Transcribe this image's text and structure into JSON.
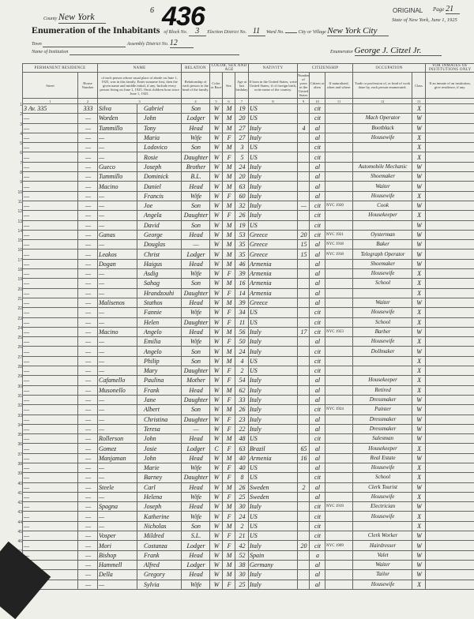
{
  "header": {
    "stamp_number": "436",
    "stamp_mark": "6",
    "original_label": "ORIGINAL",
    "page_label": "Page",
    "page_number": "21",
    "state_line": "State of New York, June 1, 1925",
    "county_label": "County",
    "county_value": "New York",
    "title": "Enumeration of the Inhabitants",
    "block_label": "of Block No.",
    "block_value": "3",
    "election_label": "Election District No.",
    "election_value": "11",
    "ward_label": "Ward No.",
    "ward_value": "",
    "city_label": "City or Village",
    "city_value": "New York City",
    "town_label": "Town",
    "assembly_label": "Assembly District No.",
    "assembly_value": "12",
    "institution_label": "Name of Institution",
    "enumerator_label": "Enumerator",
    "enumerator_value": "George J. Citzel Jr."
  },
  "columns": {
    "permanent_residence": "PERMANENT RESIDENCE",
    "street": "Street",
    "house_number": "House Number",
    "name": "NAME",
    "name_desc": "of each person whose usual place of abode on June 1, 1925, was in this family. Enter surname first, then the given name and middle initial, if any. Include every person living on June 1, 1925. Omit children born since June 1, 1925.",
    "relation": "RELATION",
    "relation_desc": "Relationship of each person to the head of the family.",
    "color_sex_age": "COLOR, SEX AND AGE",
    "color": "Color or Race",
    "sex": "Sex",
    "age": "Age at last birthday",
    "nativity": "NATIVITY",
    "nativity_desc": "If born in the United States, write United States; if of foreign birth, write name of the country.",
    "citizenship": "CITIZENSHIP",
    "years_us": "Number of years in the United States",
    "citizen_alien": "Citizen or alien",
    "naturalized": "If naturalized, when and where.",
    "occupation": "OCCUPATION",
    "occupation_desc": "Trade or profession of, or kind of work done by, each person enumerated.",
    "class": "Class",
    "inmates": "FOR INMATES OF INSTITUTIONS ONLY",
    "inmates_desc": "If an inmate of an institution, give residence, if any.",
    "numbers": [
      "1",
      "2",
      "3",
      "4",
      "5",
      "6",
      "7",
      "8",
      "9",
      "10",
      "11",
      "12",
      "13"
    ]
  },
  "rows": [
    [
      "3 Av. 335",
      "333",
      "Silva",
      "Gabriel",
      "Son",
      "W",
      "M",
      "19",
      "US",
      "",
      "cit",
      "",
      "",
      "X"
    ],
    [
      "—",
      "—",
      "Worden",
      "John",
      "Lodger",
      "W",
      "M",
      "20",
      "US",
      "",
      "cit",
      "",
      "Mach Operator",
      "W"
    ],
    [
      "—",
      "—",
      "Tummillo",
      "Tony",
      "Head",
      "W",
      "M",
      "27",
      "Italy",
      "4",
      "al",
      "",
      "Bootblack",
      "W"
    ],
    [
      "—",
      "—",
      "—",
      "Maria",
      "Wife",
      "W",
      "F",
      "27",
      "Italy",
      "",
      "al",
      "",
      "Housewife",
      "X"
    ],
    [
      "—",
      "—",
      "—",
      "Lodovico",
      "Son",
      "W",
      "M",
      "3",
      "US",
      "",
      "cit",
      "",
      "",
      "X"
    ],
    [
      "—",
      "—",
      "—",
      "Rosie",
      "Daughter",
      "W",
      "F",
      "5",
      "US",
      "",
      "cit",
      "",
      "",
      "X"
    ],
    [
      "—",
      "—",
      "Gueco",
      "Joseph",
      "Brother",
      "W",
      "M",
      "24",
      "Italy",
      "",
      "al",
      "",
      "Automobile Mechanic",
      "W"
    ],
    [
      "—",
      "—",
      "Tummillo",
      "Dominick",
      "B.L.",
      "W",
      "M",
      "20",
      "Italy",
      "",
      "al",
      "",
      "Shoemaker",
      "W"
    ],
    [
      "—",
      "—",
      "Macino",
      "Daniel",
      "Head",
      "W",
      "M",
      "63",
      "Italy",
      "",
      "al",
      "",
      "Waiter",
      "W"
    ],
    [
      "—",
      "—",
      "—",
      "Francis",
      "Wife",
      "W",
      "F",
      "60",
      "Italy",
      "",
      "al",
      "",
      "Housewife",
      "X"
    ],
    [
      "—",
      "—",
      "—",
      "Joe",
      "Son",
      "W",
      "M",
      "32",
      "Italy",
      "—",
      "cit",
      "NYC 1920",
      "Cook",
      "W"
    ],
    [
      "—",
      "—",
      "—",
      "Angela",
      "Daughter",
      "W",
      "F",
      "26",
      "Italy",
      "",
      "cit",
      "",
      "Housekeeper",
      "X"
    ],
    [
      "—",
      "—",
      "—",
      "David",
      "Son",
      "W",
      "M",
      "19",
      "US",
      "",
      "cit",
      "",
      "",
      "W"
    ],
    [
      "—",
      "—",
      "Ganas",
      "George",
      "Head",
      "W",
      "M",
      "53",
      "Greece",
      "20",
      "cit",
      "NYC 1921",
      "Oysterman",
      "W"
    ],
    [
      "—",
      "—",
      "—",
      "Douglas",
      "—",
      "W",
      "M",
      "35",
      "Greece",
      "15",
      "al",
      "NYC 1918",
      "Baker",
      "W"
    ],
    [
      "—",
      "—",
      "Leakos",
      "Christ",
      "Lodger",
      "W",
      "M",
      "35",
      "Greece",
      "15",
      "al",
      "NYC 1918",
      "Telegraph Operator",
      "W"
    ],
    [
      "—",
      "—",
      "Dogan",
      "Haigus",
      "Head",
      "W",
      "M",
      "46",
      "Armenia",
      "",
      "al",
      "",
      "Shoemaker",
      "W"
    ],
    [
      "—",
      "—",
      "—",
      "Asdig",
      "Wife",
      "W",
      "F",
      "39",
      "Armenia",
      "",
      "al",
      "",
      "Housewife",
      "X"
    ],
    [
      "—",
      "—",
      "—",
      "Sahag",
      "Son",
      "W",
      "M",
      "16",
      "Armenia",
      "",
      "al",
      "",
      "School",
      "X"
    ],
    [
      "—",
      "—",
      "—",
      "Hrandzouhi",
      "Daughter",
      "W",
      "F",
      "14",
      "Armenia",
      "",
      "al",
      "",
      "",
      "X"
    ],
    [
      "—",
      "—",
      "Malisenos",
      "Stathos",
      "Head",
      "W",
      "M",
      "39",
      "Greece",
      "",
      "al",
      "",
      "Waiter",
      "W"
    ],
    [
      "—",
      "—",
      "—",
      "Fannie",
      "Wife",
      "W",
      "F",
      "34",
      "US",
      "",
      "cit",
      "",
      "Housewife",
      "X"
    ],
    [
      "—",
      "—",
      "—",
      "Helen",
      "Daughter",
      "W",
      "F",
      "11",
      "US",
      "",
      "cit",
      "",
      "School",
      "X"
    ],
    [
      "—",
      "—",
      "Macino",
      "Angelo",
      "Head",
      "W",
      "M",
      "56",
      "Italy",
      "17",
      "cit",
      "NYC 1923",
      "Barber",
      "W"
    ],
    [
      "—",
      "—",
      "—",
      "Emilia",
      "Wife",
      "W",
      "F",
      "50",
      "Italy",
      "",
      "al",
      "",
      "Housewife",
      "X"
    ],
    [
      "—",
      "—",
      "—",
      "Angelo",
      "Son",
      "W",
      "M",
      "24",
      "Italy",
      "",
      "cit",
      "",
      "Dollmaker",
      "W"
    ],
    [
      "—",
      "—",
      "—",
      "Philip",
      "Son",
      "W",
      "M",
      "4",
      "US",
      "",
      "cit",
      "",
      "",
      "X"
    ],
    [
      "—",
      "—",
      "—",
      "Mary",
      "Daughter",
      "W",
      "F",
      "2",
      "US",
      "",
      "cit",
      "",
      "",
      "X"
    ],
    [
      "—",
      "—",
      "Cafamello",
      "Paulina",
      "Mother",
      "W",
      "F",
      "54",
      "Italy",
      "",
      "al",
      "",
      "Housekeeper",
      "X"
    ],
    [
      "—",
      "—",
      "Musonello",
      "Frank",
      "Head",
      "W",
      "M",
      "62",
      "Italy",
      "",
      "al",
      "",
      "Retired",
      "X"
    ],
    [
      "—",
      "—",
      "—",
      "Jane",
      "Daughter",
      "W",
      "F",
      "33",
      "Italy",
      "",
      "al",
      "",
      "Dressmaker",
      "W"
    ],
    [
      "—",
      "—",
      "—",
      "Albert",
      "Son",
      "W",
      "M",
      "26",
      "Italy",
      "",
      "cit",
      "NYC 1924",
      "Painter",
      "W"
    ],
    [
      "—",
      "—",
      "—",
      "Christina",
      "Daughter",
      "W",
      "F",
      "23",
      "Italy",
      "",
      "al",
      "",
      "Dressmaker",
      "W"
    ],
    [
      "—",
      "—",
      "—",
      "Teresa",
      "—",
      "W",
      "F",
      "22",
      "Italy",
      "",
      "al",
      "",
      "Dressmaker",
      "W"
    ],
    [
      "—",
      "—",
      "Rollerson",
      "John",
      "Head",
      "W",
      "M",
      "48",
      "US",
      "",
      "cit",
      "",
      "Salesman",
      "W"
    ],
    [
      "—",
      "—",
      "Gomez",
      "Josie",
      "Lodger",
      "C",
      "F",
      "63",
      "Brazil",
      "65",
      "al",
      "",
      "Housekeeper",
      "X"
    ],
    [
      "—",
      "—",
      "Manjaman",
      "John",
      "Head",
      "W",
      "M",
      "40",
      "Armenia",
      "16",
      "al",
      "",
      "Real Estate",
      "W"
    ],
    [
      "—",
      "—",
      "—",
      "Marie",
      "Wife",
      "W",
      "F",
      "40",
      "US",
      "",
      "al",
      "",
      "Housewife",
      "X"
    ],
    [
      "—",
      "—",
      "—",
      "Barney",
      "Daughter",
      "W",
      "F",
      "8",
      "US",
      "",
      "cit",
      "",
      "School",
      "X"
    ],
    [
      "—",
      "—",
      "Steele",
      "Carl",
      "Head",
      "W",
      "M",
      "26",
      "Sweden",
      "2",
      "al",
      "",
      "Clerk Tourist",
      "W"
    ],
    [
      "—",
      "—",
      "—",
      "Helena",
      "Wife",
      "W",
      "F",
      "25",
      "Sweden",
      "",
      "al",
      "",
      "Housewife",
      "X"
    ],
    [
      "—",
      "—",
      "Spagna",
      "Joseph",
      "Head",
      "W",
      "M",
      "30",
      "Italy",
      "",
      "cit",
      "NYC 1919",
      "Electrician",
      "W"
    ],
    [
      "—",
      "—",
      "—",
      "Katherine",
      "Wife",
      "W",
      "F",
      "24",
      "US",
      "",
      "cit",
      "",
      "Housewife",
      "X"
    ],
    [
      "—",
      "—",
      "—",
      "Nicholas",
      "Son",
      "W",
      "M",
      "2",
      "US",
      "",
      "cit",
      "",
      "",
      "X"
    ],
    [
      "—",
      "—",
      "Vosper",
      "Mildred",
      "S.L.",
      "W",
      "F",
      "21",
      "US",
      "",
      "cit",
      "",
      "Clerk Worker",
      "W"
    ],
    [
      "—",
      "—",
      "Mori",
      "Costanza",
      "Lodger",
      "W",
      "F",
      "42",
      "Italy",
      "20",
      "cit",
      "NYC 1909",
      "Hairdresser",
      "W"
    ],
    [
      "—",
      "—",
      "Bishop",
      "Frank",
      "Head",
      "W",
      "M",
      "52",
      "Spain",
      "",
      "a",
      "",
      "Valet",
      "W"
    ],
    [
      "—",
      "—",
      "Hammell",
      "Alfred",
      "Lodger",
      "W",
      "M",
      "38",
      "Germany",
      "",
      "al",
      "",
      "Waiter",
      "W"
    ],
    [
      "—",
      "—",
      "Della",
      "Gregory",
      "Head",
      "W",
      "M",
      "30",
      "Italy",
      "",
      "al",
      "",
      "Tailor",
      "W"
    ],
    [
      "—",
      "—",
      "—",
      "Sylvia",
      "Wife",
      "W",
      "F",
      "25",
      "Italy",
      "",
      "al",
      "",
      "Housewife",
      "X"
    ]
  ],
  "family_separators_before": [
    6,
    11,
    16,
    21,
    26,
    31,
    36,
    41,
    46
  ]
}
